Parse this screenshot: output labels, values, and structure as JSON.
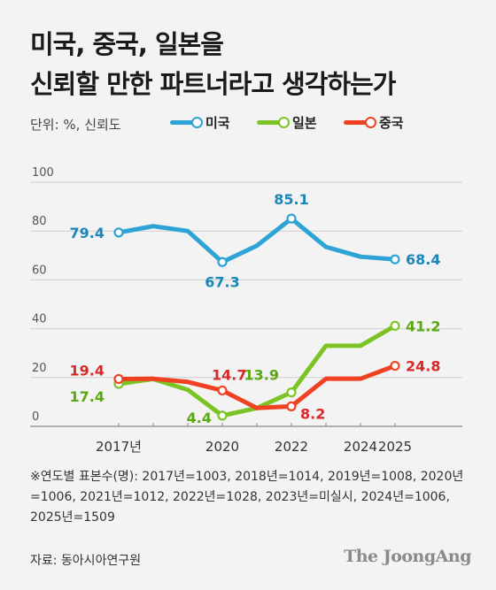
{
  "title_line1": "미국, 중국, 일본을",
  "title_line2": "신뢰할 만한 파트너라고 생각하는가",
  "unit_label": "단위: %, 신뢰도",
  "colors": {
    "us": "#2ea3d6",
    "jp": "#7cc425",
    "cn": "#f04123",
    "us_label": "#1d86b9",
    "jp_label": "#5aa812",
    "cn_label": "#d62a2a"
  },
  "note": "※연도별 표본수(명): 2017년=1003, 2018년=1014, 2019년=1008, 2020년=1006, 2021년=1012, 2022년=1028, 2023년=미실시, 2024년=1006, 2025년=1509",
  "source": "자료: 동아시아연구원",
  "brand": "The JoongAng",
  "chart_data": {
    "type": "line",
    "x": [
      2017,
      2018,
      2019,
      2020,
      2021,
      2022,
      2023,
      2024,
      2025
    ],
    "xticks": [
      2017,
      2020,
      2022,
      2024,
      2025
    ],
    "xtick_labels": [
      "2017년",
      "2020",
      "2022",
      "2024",
      "2025"
    ],
    "yticks": [
      0,
      20,
      40,
      60,
      80,
      100
    ],
    "ylim": [
      0,
      100
    ],
    "grid": true,
    "series": [
      {
        "key": "us",
        "name": "미국",
        "values": [
          79.4,
          82,
          80,
          67.3,
          74,
          85.1,
          73.5,
          69.5,
          68.4
        ],
        "labels": [
          {
            "index": 0,
            "text": "79.4"
          },
          {
            "index": 3,
            "text": "67.3"
          },
          {
            "index": 5,
            "text": "85.1"
          },
          {
            "index": 8,
            "text": "68.4"
          }
        ]
      },
      {
        "key": "jp",
        "name": "일본",
        "values": [
          17.4,
          19.4,
          15,
          4.4,
          7.5,
          13.9,
          33,
          33,
          41.2
        ],
        "labels": [
          {
            "index": 0,
            "text": "17.4"
          },
          {
            "index": 3,
            "text": "4.4"
          },
          {
            "index": 5,
            "text": "13.9"
          },
          {
            "index": 8,
            "text": "41.2"
          }
        ]
      },
      {
        "key": "cn",
        "name": "중국",
        "values": [
          19.4,
          19.5,
          18.2,
          14.7,
          7.5,
          8.2,
          19.5,
          19.5,
          24.8
        ],
        "labels": [
          {
            "index": 0,
            "text": "19.4"
          },
          {
            "index": 3,
            "text": "14.7"
          },
          {
            "index": 5,
            "text": "8.2"
          },
          {
            "index": 8,
            "text": "24.8"
          }
        ]
      }
    ]
  }
}
